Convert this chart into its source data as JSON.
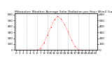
{
  "title": "Milwaukee Weather Average Solar Radiation per Hour W/m2 (Last 24 Hours)",
  "hours": [
    0,
    1,
    2,
    3,
    4,
    5,
    6,
    7,
    8,
    9,
    10,
    11,
    12,
    13,
    14,
    15,
    16,
    17,
    18,
    19,
    20,
    21,
    22,
    23
  ],
  "values": [
    0,
    0,
    0,
    0,
    0,
    0,
    2,
    30,
    120,
    250,
    390,
    510,
    570,
    530,
    430,
    310,
    170,
    60,
    8,
    0,
    0,
    0,
    0,
    0
  ],
  "line_color": "red",
  "bg_color": "#ffffff",
  "grid_color": "#bbbbbb",
  "ylim": [
    0,
    620
  ],
  "xlim": [
    -0.5,
    23.5
  ],
  "yticks": [
    0,
    100,
    200,
    300,
    400,
    500,
    600
  ],
  "xtick_major": [
    0,
    3,
    6,
    9,
    12,
    15,
    18,
    21
  ],
  "markersize": 1.8,
  "title_fontsize": 3.2,
  "tick_fontsize": 3.0
}
